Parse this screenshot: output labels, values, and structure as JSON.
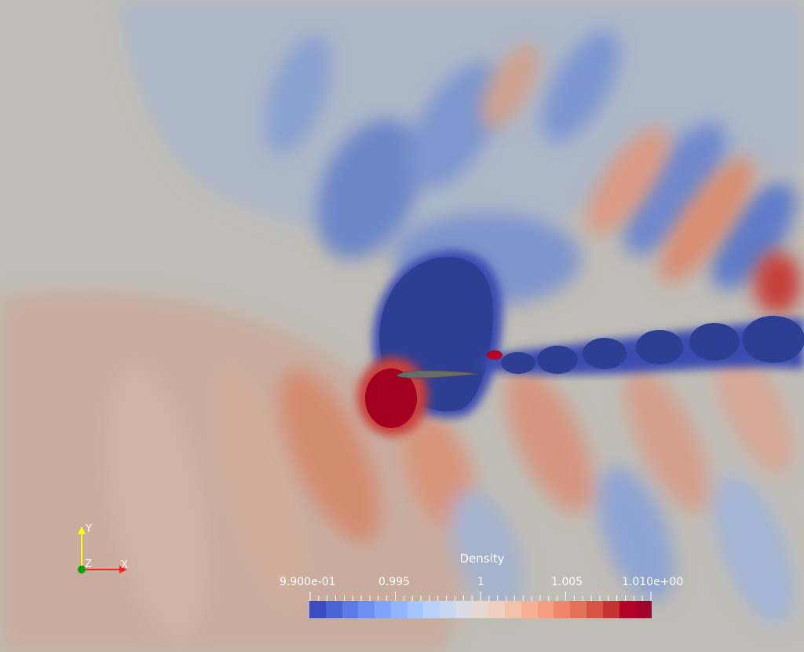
{
  "colorbar": {
    "title": "Density",
    "ticks": [
      "9.900e-01",
      "0.995",
      "1",
      "1.005",
      "1.010e+00"
    ],
    "colors": [
      "#3b4cc0",
      "#4a63d3",
      "#5b7ae4",
      "#6d8ff1",
      "#80a3fa",
      "#93b5fe",
      "#a6c4fe",
      "#b9d0f9",
      "#cad8ef",
      "#d9dce2",
      "#e5d8d1",
      "#efcfbf",
      "#f4c2aa",
      "#f6b194",
      "#f59e7f",
      "#ef886b",
      "#e57058",
      "#d75445",
      "#c53334",
      "#b40426",
      "#a2002a"
    ]
  },
  "orientation_axes": {
    "y_label": "Y",
    "z_label": "Z",
    "x_label": "X"
  },
  "field": {
    "low_color": "#2e3f93",
    "high_color": "#a3001f",
    "neutral_color": "#c0bdb6"
  }
}
